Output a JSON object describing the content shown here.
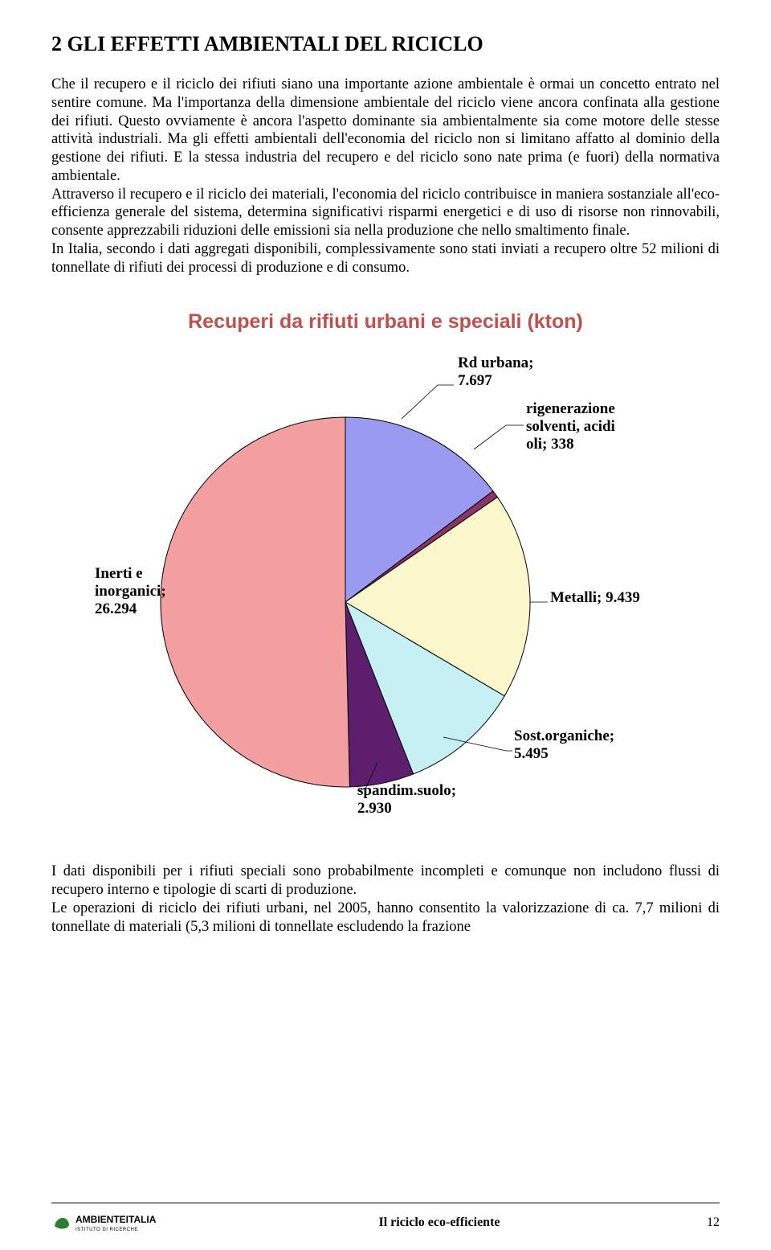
{
  "heading": "2   GLI EFFETTI AMBIENTALI DEL RICICLO",
  "paragraphs": {
    "p1": "Che il recupero e il riciclo dei rifiuti siano una importante azione ambientale è ormai un concetto entrato nel sentire comune. Ma l'importanza della dimensione ambientale del riciclo viene ancora confinata alla gestione dei rifiuti. Questo ovviamente è ancora l'aspetto dominante sia ambientalmente sia come motore delle stesse attività industriali. Ma gli effetti ambientali dell'economia del riciclo non si limitano affatto al dominio della gestione dei rifiuti. E la stessa industria del recupero e del riciclo sono nate prima (e fuori) della normativa ambientale.",
    "p2": "Attraverso il recupero e il riciclo dei materiali, l'economia del riciclo contribuisce in maniera sostanziale all'eco-efficienza generale del sistema, determina significativi risparmi energetici e di uso di risorse non rinnovabili, consente apprezzabili riduzioni delle emissioni sia nella produzione che nello smaltimento finale.",
    "p3": "In Italia, secondo i dati aggregati disponibili, complessivamente sono stati inviati a recupero oltre 52 milioni di tonnellate di rifiuti dei processi di produzione e di consumo.",
    "p4": "I dati disponibili per i rifiuti speciali sono probabilmente incompleti e comunque non includono flussi di recupero interno e tipologie di scarti di produzione.",
    "p5": "Le operazioni di riciclo dei rifiuti urbani, nel 2005, hanno consentito la valorizzazione di ca. 7,7 milioni di tonnellate di materiali (5,3 milioni di tonnellate escludendo la frazione"
  },
  "chart": {
    "type": "pie",
    "title": "Recuperi da rifiuti urbani e speciali (kton)",
    "title_color": "#c0504d",
    "title_fontsize": 25,
    "background_color": "#ffffff",
    "border_color": "#000000",
    "slices": [
      {
        "label_line1": "Rd urbana;",
        "label_line2": "7.697",
        "value": 7697,
        "color": "#9a9af0"
      },
      {
        "label_line1": "rigenerazione",
        "label_line2": "solventi, acidi",
        "label_line3": "oli; 338",
        "value": 338,
        "color": "#8b3566"
      },
      {
        "label_line1": "Metalli; 9.439",
        "label_line2": "",
        "value": 9439,
        "color": "#fdf7cc"
      },
      {
        "label_line1": "Sost.organiche;",
        "label_line2": "5.495",
        "value": 5495,
        "color": "#c7f0f5"
      },
      {
        "label_line1": "spandim.suolo;",
        "label_line2": "2.930",
        "value": 2930,
        "color": "#5e1e6e"
      },
      {
        "label_line1": "Inerti e",
        "label_line2": "inorganici;",
        "label_line3": "26.294",
        "value": 26294,
        "color": "#f5a0a0"
      }
    ]
  },
  "footer": {
    "logo_text": "AMBIENTEITALIA",
    "logo_sub": "ISTITUTO DI RICERCHE",
    "doc_title": "Il riciclo eco-efficiente",
    "page_number": "12"
  }
}
